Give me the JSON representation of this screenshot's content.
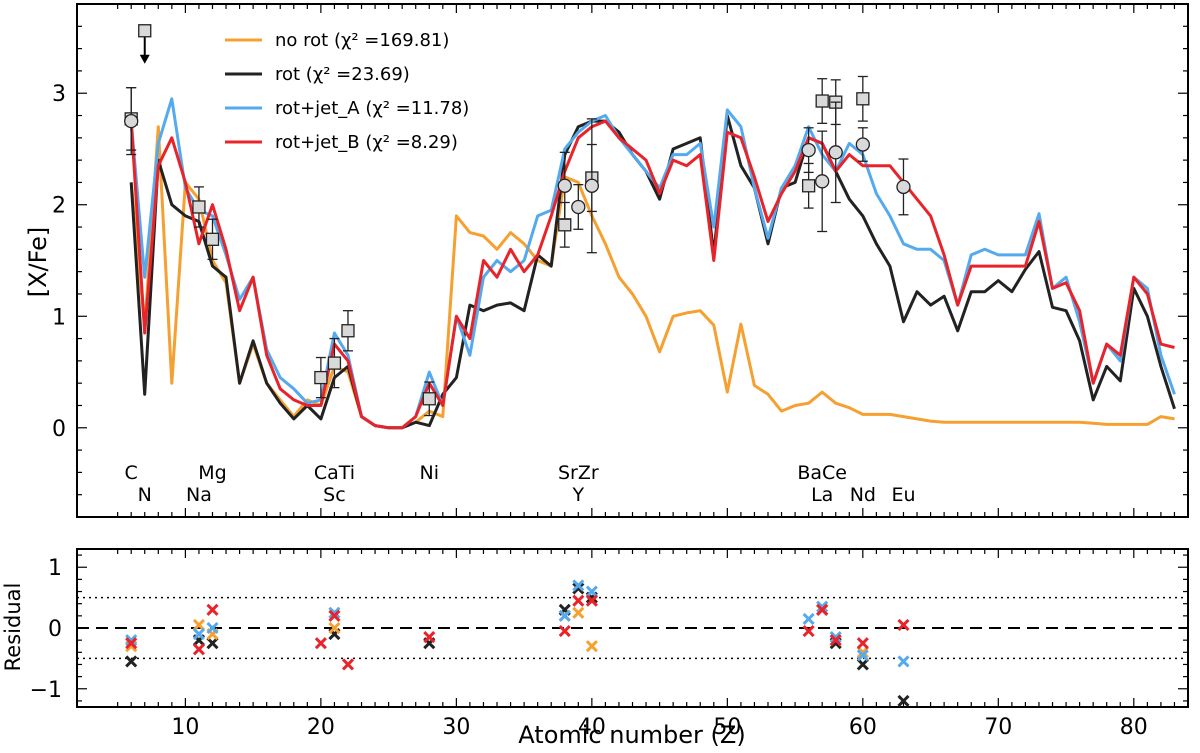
{
  "chart_data": [
    {
      "type": "line",
      "panel": "main",
      "ylabel": "[X/Fe]",
      "xlim": [
        2,
        84
      ],
      "ylim": [
        -0.8,
        3.8
      ],
      "yticks": [
        0,
        1,
        2,
        3
      ],
      "colors": {
        "no_rot": "#f5a030",
        "rot": "#222222",
        "rot_jet_A": "#55aaee",
        "rot_jet_B": "#e8242a"
      },
      "legend": [
        {
          "key": "no_rot",
          "label": "no rot (χ² =169.81)"
        },
        {
          "key": "rot",
          "label": "rot (χ² =23.69)"
        },
        {
          "key": "rot_jet_A",
          "label": "rot+jet_A (χ² =11.78)"
        },
        {
          "key": "rot_jet_B",
          "label": "rot+jet_B (χ² =8.29)"
        }
      ],
      "series": [
        {
          "key": "no_rot",
          "name": "no rot",
          "x": [
            6,
            7,
            8,
            9,
            10,
            11,
            12,
            13,
            14,
            15,
            16,
            17,
            18,
            19,
            20,
            21,
            22,
            23,
            24,
            25,
            26,
            27,
            28,
            29,
            30,
            31,
            32,
            33,
            34,
            35,
            36,
            37,
            38,
            39,
            40,
            41,
            42,
            43,
            44,
            45,
            46,
            47,
            48,
            49,
            50,
            51,
            52,
            53,
            54,
            55,
            56,
            57,
            58,
            59,
            60,
            61,
            62,
            63,
            64,
            65,
            66,
            67,
            68,
            69,
            70,
            71,
            72,
            73,
            74,
            75,
            76,
            77,
            78,
            79,
            80,
            81,
            82,
            83
          ],
          "values": [
            2.2,
            0.9,
            2.7,
            0.4,
            2.2,
            2.05,
            1.5,
            1.3,
            0.4,
            0.75,
            0.4,
            0.25,
            0.1,
            0.25,
            0.2,
            0.55,
            0.5,
            0.1,
            0.02,
            0.0,
            0.0,
            0.05,
            0.15,
            0.1,
            1.9,
            1.75,
            1.72,
            1.6,
            1.75,
            1.65,
            1.5,
            1.45,
            2.25,
            2.2,
            1.9,
            1.65,
            1.35,
            1.2,
            1.0,
            0.68,
            1.0,
            1.03,
            1.05,
            0.92,
            0.32,
            0.93,
            0.38,
            0.3,
            0.15,
            0.2,
            0.22,
            0.32,
            0.22,
            0.18,
            0.12,
            0.12,
            0.12,
            0.1,
            0.08,
            0.06,
            0.05,
            0.05,
            0.05,
            0.05,
            0.05,
            0.05,
            0.05,
            0.05,
            0.05,
            0.05,
            0.05,
            0.04,
            0.03,
            0.03,
            0.03,
            0.03,
            0.1,
            0.08
          ]
        },
        {
          "key": "rot",
          "name": "rot",
          "x": [
            6,
            7,
            8,
            9,
            10,
            11,
            12,
            13,
            14,
            15,
            16,
            17,
            18,
            19,
            20,
            21,
            22,
            23,
            24,
            25,
            26,
            27,
            28,
            29,
            30,
            31,
            32,
            33,
            34,
            35,
            36,
            37,
            38,
            39,
            40,
            41,
            42,
            43,
            44,
            45,
            46,
            47,
            48,
            49,
            50,
            51,
            52,
            53,
            54,
            55,
            56,
            57,
            58,
            59,
            60,
            61,
            62,
            63,
            64,
            65,
            66,
            67,
            68,
            69,
            70,
            71,
            72,
            73,
            74,
            75,
            76,
            77,
            78,
            79,
            80,
            81,
            82,
            83
          ],
          "values": [
            2.2,
            0.3,
            2.4,
            2.0,
            1.9,
            1.85,
            1.45,
            1.35,
            0.4,
            0.78,
            0.4,
            0.22,
            0.08,
            0.2,
            0.08,
            0.45,
            0.55,
            0.1,
            0.02,
            0.0,
            0.0,
            0.05,
            0.02,
            0.3,
            0.45,
            1.1,
            1.05,
            1.1,
            1.12,
            1.05,
            1.55,
            1.45,
            2.45,
            2.7,
            2.75,
            2.75,
            2.65,
            2.45,
            2.3,
            2.05,
            2.5,
            2.55,
            2.6,
            1.55,
            2.8,
            2.35,
            2.15,
            1.65,
            2.15,
            2.2,
            2.6,
            2.55,
            2.3,
            2.05,
            1.9,
            1.65,
            1.45,
            0.95,
            1.22,
            1.1,
            1.18,
            0.87,
            1.22,
            1.22,
            1.32,
            1.22,
            1.42,
            1.58,
            1.08,
            1.05,
            0.78,
            0.25,
            0.55,
            0.42,
            1.25,
            1.0,
            0.55,
            0.17
          ]
        },
        {
          "key": "rot_jet_A",
          "name": "rot+jet_A",
          "x": [
            6,
            7,
            8,
            9,
            10,
            11,
            12,
            13,
            14,
            15,
            16,
            17,
            18,
            19,
            20,
            21,
            22,
            23,
            24,
            25,
            26,
            27,
            28,
            29,
            30,
            31,
            32,
            33,
            34,
            35,
            36,
            37,
            38,
            39,
            40,
            41,
            42,
            43,
            44,
            45,
            46,
            47,
            48,
            49,
            50,
            51,
            52,
            53,
            54,
            55,
            56,
            57,
            58,
            59,
            60,
            61,
            62,
            63,
            64,
            65,
            66,
            67,
            68,
            69,
            70,
            71,
            72,
            73,
            74,
            75,
            76,
            77,
            78,
            79,
            80,
            81,
            82,
            83
          ],
          "values": [
            2.75,
            1.35,
            2.55,
            2.95,
            2.15,
            1.95,
            1.9,
            1.55,
            1.15,
            1.35,
            0.7,
            0.45,
            0.35,
            0.22,
            0.25,
            0.85,
            0.65,
            0.1,
            0.02,
            0.0,
            0.0,
            0.1,
            0.5,
            0.2,
            1.0,
            0.65,
            1.35,
            1.5,
            1.4,
            1.5,
            1.9,
            1.95,
            2.5,
            2.65,
            2.75,
            2.8,
            2.6,
            2.45,
            2.3,
            2.15,
            2.45,
            2.45,
            2.55,
            1.8,
            2.85,
            2.7,
            2.15,
            1.7,
            2.15,
            2.35,
            2.7,
            2.45,
            2.3,
            2.55,
            2.45,
            2.1,
            1.9,
            1.65,
            1.6,
            1.6,
            1.5,
            1.1,
            1.55,
            1.6,
            1.55,
            1.55,
            1.55,
            1.92,
            1.25,
            1.35,
            0.95,
            0.4,
            0.75,
            0.6,
            1.35,
            1.25,
            0.65,
            0.3
          ]
        },
        {
          "key": "rot_jet_B",
          "name": "rot+jet_B",
          "x": [
            6,
            7,
            8,
            9,
            10,
            11,
            12,
            13,
            14,
            15,
            16,
            17,
            18,
            19,
            20,
            21,
            22,
            23,
            24,
            25,
            26,
            27,
            28,
            29,
            30,
            31,
            32,
            33,
            34,
            35,
            36,
            37,
            38,
            39,
            40,
            41,
            42,
            43,
            44,
            45,
            46,
            47,
            48,
            49,
            50,
            51,
            52,
            53,
            54,
            55,
            56,
            57,
            58,
            59,
            60,
            61,
            62,
            63,
            64,
            65,
            66,
            67,
            68,
            69,
            70,
            71,
            72,
            73,
            74,
            75,
            76,
            77,
            78,
            79,
            80,
            81,
            82,
            83
          ],
          "values": [
            2.75,
            0.85,
            2.35,
            2.6,
            2.2,
            1.65,
            2.0,
            1.6,
            1.05,
            1.35,
            0.65,
            0.35,
            0.25,
            0.2,
            0.2,
            0.75,
            0.6,
            0.1,
            0.02,
            0.0,
            0.0,
            0.1,
            0.4,
            0.2,
            1.0,
            0.8,
            1.5,
            1.35,
            1.6,
            1.4,
            1.55,
            1.9,
            2.3,
            2.6,
            2.7,
            2.75,
            2.6,
            2.5,
            2.4,
            2.1,
            2.4,
            2.35,
            2.45,
            1.5,
            2.65,
            2.6,
            2.25,
            1.85,
            2.1,
            2.3,
            2.6,
            2.55,
            2.3,
            2.45,
            2.35,
            2.35,
            2.35,
            2.2,
            2.05,
            1.9,
            1.55,
            1.1,
            1.45,
            1.45,
            1.45,
            1.45,
            1.45,
            1.85,
            1.25,
            1.3,
            1.05,
            0.4,
            0.75,
            0.65,
            1.35,
            1.2,
            0.75,
            0.72
          ]
        }
      ],
      "observations": {
        "squares": [
          {
            "z": 6,
            "y": 2.77,
            "err": 0.28
          },
          {
            "z": 7,
            "y": 3.56,
            "upper_limit": true
          },
          {
            "z": 11,
            "y": 1.98,
            "err": 0.18
          },
          {
            "z": 12,
            "y": 1.69,
            "err": 0.18
          },
          {
            "z": 20,
            "y": 0.45,
            "err": 0.18
          },
          {
            "z": 21,
            "y": 0.58,
            "err": 0.22
          },
          {
            "z": 22,
            "y": 0.87,
            "err": 0.18
          },
          {
            "z": 28,
            "y": 0.26,
            "err": 0.15
          },
          {
            "z": 38,
            "y": 1.82,
            "err": 0.2
          },
          {
            "z": 40,
            "y": 2.24,
            "err": 0.3
          },
          {
            "z": 56,
            "y": 2.17,
            "err": 0.2
          },
          {
            "z": 57,
            "y": 2.93,
            "err": 0.2
          },
          {
            "z": 58,
            "y": 2.92,
            "err": 0.2
          },
          {
            "z": 60,
            "y": 2.95,
            "err": 0.2
          }
        ],
        "circles": [
          {
            "z": 6,
            "y": 2.75,
            "err": 0.3
          },
          {
            "z": 38,
            "y": 2.17,
            "err": 0.3
          },
          {
            "z": 39,
            "y": 1.98,
            "err": 0.2
          },
          {
            "z": 40,
            "y": 2.17,
            "err": 0.6
          },
          {
            "z": 56,
            "y": 2.49,
            "err": 0.2
          },
          {
            "z": 57,
            "y": 2.21,
            "err": 0.45
          },
          {
            "z": 58,
            "y": 2.47,
            "err": 0.45
          },
          {
            "z": 60,
            "y": 2.54,
            "err": 0.15
          },
          {
            "z": 63,
            "y": 2.16,
            "err": 0.25
          }
        ]
      },
      "element_labels": [
        {
          "text": "C",
          "z": 6,
          "row": 1
        },
        {
          "text": "N",
          "z": 7,
          "row": 2
        },
        {
          "text": "Mg",
          "z": 12,
          "row": 1
        },
        {
          "text": "Na",
          "z": 11,
          "row": 2
        },
        {
          "text": "CaTi",
          "z": 21,
          "row": 1
        },
        {
          "text": "Sc",
          "z": 21,
          "row": 2
        },
        {
          "text": "Ni",
          "z": 28,
          "row": 1
        },
        {
          "text": "SrZr",
          "z": 39,
          "row": 1
        },
        {
          "text": "Y",
          "z": 39,
          "row": 2
        },
        {
          "text": "BaCe",
          "z": 57,
          "row": 1
        },
        {
          "text": "La",
          "z": 57,
          "row": 2
        },
        {
          "text": "Nd",
          "z": 60,
          "row": 2
        },
        {
          "text": "Eu",
          "z": 63,
          "row": 2
        }
      ]
    },
    {
      "type": "scatter",
      "panel": "residual",
      "xlabel": "Atomic number (Z)",
      "ylabel": "Residual",
      "xlim": [
        2,
        84
      ],
      "ylim": [
        -1.3,
        1.3
      ],
      "xticks": [
        10,
        20,
        30,
        40,
        50,
        60,
        70,
        80
      ],
      "yticks": [
        -1,
        0,
        1
      ],
      "reference_lines": [
        {
          "y": 0,
          "style": "dashed"
        },
        {
          "y": 0.5,
          "style": "dotted"
        },
        {
          "y": -0.5,
          "style": "dotted"
        }
      ],
      "series": [
        {
          "key": "rot",
          "name": "rot",
          "x": [
            6,
            11,
            12,
            21,
            28,
            38,
            39,
            40,
            57,
            58,
            60,
            63
          ],
          "values": [
            -0.55,
            -0.2,
            -0.25,
            -0.1,
            -0.25,
            0.3,
            0.65,
            0.5,
            0.3,
            -0.25,
            -0.6,
            -1.2
          ]
        },
        {
          "key": "no_rot",
          "name": "no rot",
          "x": [
            6,
            11,
            12,
            21,
            38,
            39,
            40,
            57,
            60
          ],
          "values": [
            -0.3,
            0.05,
            -0.1,
            0.0,
            0.2,
            0.25,
            -0.3,
            0.3,
            -0.4
          ]
        },
        {
          "key": "rot_jet_A",
          "name": "rot+jet_A",
          "x": [
            6,
            11,
            12,
            21,
            38,
            39,
            40,
            56,
            57,
            58,
            60,
            63
          ],
          "values": [
            -0.2,
            -0.1,
            0.0,
            0.25,
            0.2,
            0.7,
            0.6,
            0.15,
            0.35,
            -0.15,
            -0.45,
            -0.55
          ]
        },
        {
          "key": "rot_jet_B",
          "name": "rot+jet_B",
          "x": [
            6,
            11,
            12,
            20,
            21,
            22,
            28,
            38,
            39,
            40,
            56,
            57,
            58,
            60,
            63
          ],
          "values": [
            -0.25,
            -0.35,
            0.3,
            -0.25,
            0.2,
            -0.6,
            -0.15,
            -0.05,
            0.45,
            0.45,
            -0.05,
            0.3,
            -0.2,
            -0.25,
            0.05
          ]
        }
      ]
    }
  ]
}
